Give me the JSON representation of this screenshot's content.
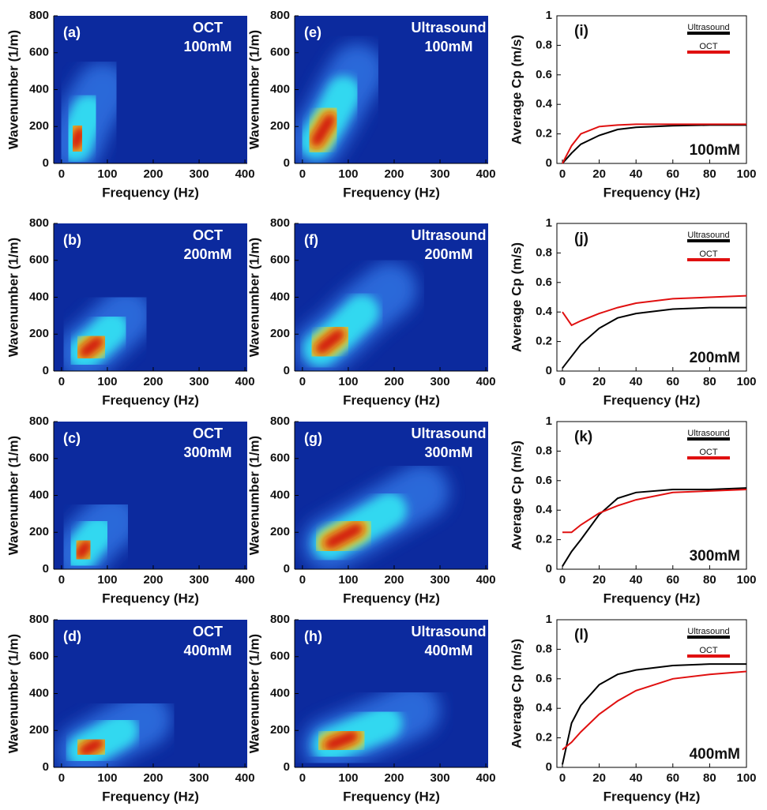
{
  "chart_data": [
    {
      "type": "heatmap",
      "panel": "(a)",
      "title": "OCT",
      "subtitle": "100mM",
      "x_label": "Frequency (Hz)",
      "y_label": "Wavenumber (1/m)",
      "xlim": [
        -17,
        405
      ],
      "ylim": [
        0,
        800
      ],
      "xticks": [
        0,
        100,
        200,
        300,
        400
      ],
      "yticks": [
        0,
        200,
        400,
        600,
        800
      ],
      "x": [
        30,
        40,
        60,
        90
      ],
      "values": [
        100,
        170,
        280,
        400
      ]
    },
    {
      "type": "heatmap",
      "panel": "(b)",
      "title": "OCT",
      "subtitle": "200mM",
      "x_label": "Frequency (Hz)",
      "y_label": "Wavenumber (1/m)",
      "xlim": [
        -17,
        405
      ],
      "ylim": [
        0,
        800
      ],
      "xticks": [
        0,
        100,
        200,
        300,
        400
      ],
      "yticks": [
        0,
        200,
        400,
        600,
        800
      ],
      "x": [
        50,
        80,
        110,
        140
      ],
      "values": [
        100,
        160,
        230,
        300
      ]
    },
    {
      "type": "heatmap",
      "panel": "(c)",
      "title": "OCT",
      "subtitle": "300mM",
      "x_label": "Frequency (Hz)",
      "y_label": "Wavenumber (1/m)",
      "xlim": [
        -17,
        405
      ],
      "ylim": [
        0,
        800
      ],
      "xticks": [
        0,
        100,
        200,
        300,
        400
      ],
      "yticks": [
        0,
        200,
        400,
        600,
        800
      ],
      "x": [
        40,
        55,
        80,
        110
      ],
      "values": [
        80,
        130,
        200,
        260
      ]
    },
    {
      "type": "heatmap",
      "panel": "(d)",
      "title": "OCT",
      "subtitle": "400mM",
      "x_label": "Frequency (Hz)",
      "y_label": "Wavenumber (1/m)",
      "xlim": [
        -17,
        405
      ],
      "ylim": [
        0,
        800
      ],
      "xticks": [
        0,
        100,
        200,
        300,
        400
      ],
      "yticks": [
        0,
        200,
        400,
        600,
        800
      ],
      "x": [
        50,
        80,
        130,
        180
      ],
      "values": [
        90,
        130,
        200,
        260
      ]
    },
    {
      "type": "heatmap",
      "panel": "(e)",
      "title": "Ultrasound",
      "subtitle": "100mM",
      "x_label": "Frequency (Hz)",
      "y_label": "Wavenumber (1/m)",
      "xlim": [
        -17,
        405
      ],
      "ylim": [
        0,
        800
      ],
      "xticks": [
        0,
        100,
        200,
        300,
        400
      ],
      "yticks": [
        0,
        200,
        400,
        600,
        800
      ],
      "x": [
        30,
        60,
        90,
        120
      ],
      "values": [
        120,
        240,
        380,
        500
      ]
    },
    {
      "type": "heatmap",
      "panel": "(f)",
      "title": "Ultrasound",
      "subtitle": "200mM",
      "x_label": "Frequency (Hz)",
      "y_label": "Wavenumber (1/m)",
      "xlim": [
        -17,
        405
      ],
      "ylim": [
        0,
        800
      ],
      "xticks": [
        0,
        100,
        200,
        300,
        400
      ],
      "yticks": [
        0,
        200,
        400,
        600,
        800
      ],
      "x": [
        40,
        80,
        130,
        190
      ],
      "values": [
        120,
        200,
        320,
        440
      ]
    },
    {
      "type": "heatmap",
      "panel": "(g)",
      "title": "Ultrasound",
      "subtitle": "300mM",
      "x_label": "Frequency (Hz)",
      "y_label": "Wavenumber (1/m)",
      "xlim": [
        -17,
        405
      ],
      "ylim": [
        0,
        800
      ],
      "xticks": [
        0,
        100,
        200,
        300,
        400
      ],
      "yticks": [
        0,
        200,
        400,
        600,
        800
      ],
      "x": [
        60,
        120,
        190,
        260
      ],
      "values": [
        140,
        220,
        320,
        420
      ]
    },
    {
      "type": "heatmap",
      "panel": "(h)",
      "title": "Ultrasound",
      "subtitle": "400mM",
      "x_label": "Frequency (Hz)",
      "y_label": "Wavenumber (1/m)",
      "xlim": [
        -17,
        405
      ],
      "ylim": [
        0,
        800
      ],
      "xticks": [
        0,
        100,
        200,
        300,
        400
      ],
      "yticks": [
        0,
        200,
        400,
        600,
        800
      ],
      "x": [
        60,
        110,
        180,
        240
      ],
      "values": [
        120,
        170,
        240,
        310
      ]
    },
    {
      "type": "line",
      "panel": "(i)",
      "annotation": "100mM",
      "x_label": "Frequency (Hz)",
      "y_label": "Average Cp (m/s)",
      "xlim": [
        -3,
        100
      ],
      "ylim": [
        0,
        1
      ],
      "xticks": [
        0,
        20,
        40,
        60,
        80,
        100
      ],
      "yticks": [
        0,
        0.2,
        0.4,
        0.6,
        0.8,
        1
      ],
      "legend": "upper right",
      "x": [
        0,
        5,
        10,
        20,
        30,
        40,
        60,
        80,
        100
      ],
      "series": [
        {
          "name": "Ultrasound",
          "color": "#000000",
          "values": [
            0,
            0.07,
            0.13,
            0.19,
            0.23,
            0.245,
            0.255,
            0.26,
            0.26
          ]
        },
        {
          "name": "OCT",
          "color": "#e01010",
          "values": [
            0,
            0.12,
            0.2,
            0.25,
            0.26,
            0.265,
            0.265,
            0.265,
            0.265
          ]
        }
      ]
    },
    {
      "type": "line",
      "panel": "(j)",
      "annotation": "200mM",
      "x_label": "Frequency (Hz)",
      "y_label": "Average Cp (m/s)",
      "xlim": [
        -3,
        100
      ],
      "ylim": [
        0,
        1
      ],
      "xticks": [
        0,
        20,
        40,
        60,
        80,
        100
      ],
      "yticks": [
        0,
        0.2,
        0.4,
        0.6,
        0.8,
        1
      ],
      "legend": "upper right",
      "x": [
        0,
        5,
        10,
        20,
        30,
        40,
        60,
        80,
        100
      ],
      "series": [
        {
          "name": "Ultrasound",
          "color": "#000000",
          "values": [
            0.02,
            0.1,
            0.18,
            0.29,
            0.36,
            0.39,
            0.42,
            0.43,
            0.43
          ]
        },
        {
          "name": "OCT",
          "color": "#e01010",
          "values": [
            0.4,
            0.31,
            0.34,
            0.39,
            0.43,
            0.46,
            0.49,
            0.5,
            0.51
          ]
        }
      ]
    },
    {
      "type": "line",
      "panel": "(k)",
      "annotation": "300mM",
      "x_label": "Frequency (Hz)",
      "y_label": "Average Cp (m/s)",
      "xlim": [
        -3,
        100
      ],
      "ylim": [
        0,
        1
      ],
      "xticks": [
        0,
        20,
        40,
        60,
        80,
        100
      ],
      "yticks": [
        0,
        0.2,
        0.4,
        0.6,
        0.8,
        1
      ],
      "legend": "upper right",
      "x": [
        0,
        5,
        10,
        20,
        30,
        40,
        60,
        80,
        100
      ],
      "series": [
        {
          "name": "Ultrasound",
          "color": "#000000",
          "values": [
            0.02,
            0.12,
            0.2,
            0.37,
            0.48,
            0.52,
            0.54,
            0.54,
            0.55
          ]
        },
        {
          "name": "OCT",
          "color": "#e01010",
          "values": [
            0.25,
            0.25,
            0.3,
            0.38,
            0.43,
            0.47,
            0.52,
            0.53,
            0.54
          ]
        }
      ]
    },
    {
      "type": "line",
      "panel": "(l)",
      "annotation": "400mM",
      "x_label": "Frequency (Hz)",
      "y_label": "Average Cp (m/s)",
      "xlim": [
        -3,
        100
      ],
      "ylim": [
        0,
        1
      ],
      "xticks": [
        0,
        20,
        40,
        60,
        80,
        100
      ],
      "yticks": [
        0,
        0.2,
        0.4,
        0.6,
        0.8,
        1
      ],
      "legend": "upper right",
      "x": [
        0,
        5,
        10,
        20,
        30,
        40,
        60,
        80,
        100
      ],
      "series": [
        {
          "name": "Ultrasound",
          "color": "#000000",
          "values": [
            0.02,
            0.3,
            0.42,
            0.56,
            0.63,
            0.66,
            0.69,
            0.7,
            0.7
          ]
        },
        {
          "name": "OCT",
          "color": "#e01010",
          "values": [
            0.12,
            0.17,
            0.24,
            0.36,
            0.45,
            0.52,
            0.6,
            0.63,
            0.65
          ]
        }
      ]
    }
  ]
}
